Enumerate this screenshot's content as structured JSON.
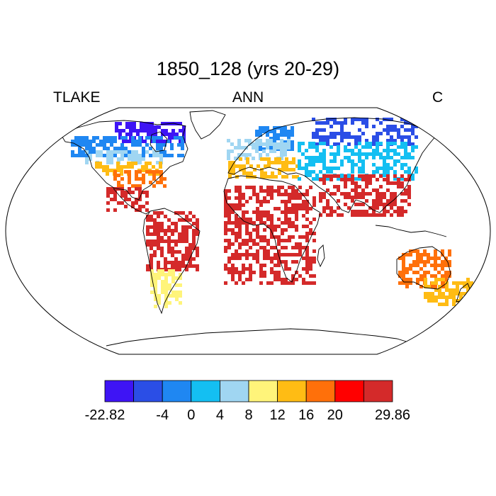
{
  "header": {
    "title": "1850_128 (yrs 20-29)",
    "left_label": "TLAKE",
    "center_label": "ANN",
    "right_label": "C"
  },
  "colorbar": {
    "colors": [
      "#3e14f5",
      "#2b4ee6",
      "#1f87f2",
      "#14bff2",
      "#a0d6f2",
      "#fff47a",
      "#ffbc14",
      "#ff700a",
      "#ff0000",
      "#d42a2a"
    ],
    "tick_labels": [
      "-22.82",
      "",
      "-4",
      "0",
      "4",
      "8",
      "12",
      "16",
      "20",
      "",
      "29.86"
    ]
  },
  "map": {
    "projection": "robinson",
    "variable": "lake temperature",
    "land_outline_color": "#000000",
    "regions": [
      {
        "name": "canadian-arctic",
        "color_index": 0
      },
      {
        "name": "canada",
        "color_index": 2
      },
      {
        "name": "northern-usa",
        "color_index": 4
      },
      {
        "name": "central-usa",
        "color_index": 6
      },
      {
        "name": "southern-usa",
        "color_index": 7
      },
      {
        "name": "mexico",
        "color_index": 9
      },
      {
        "name": "south-america",
        "color_index": 9
      },
      {
        "name": "patagonia",
        "color_index": 5
      },
      {
        "name": "scandinavia",
        "color_index": 2
      },
      {
        "name": "europe",
        "color_index": 4
      },
      {
        "name": "southern-europe",
        "color_index": 6
      },
      {
        "name": "siberia",
        "color_index": 1
      },
      {
        "name": "central-asia",
        "color_index": 3
      },
      {
        "name": "southern-asia",
        "color_index": 9
      },
      {
        "name": "africa",
        "color_index": 9
      },
      {
        "name": "australia",
        "color_index": 7
      },
      {
        "name": "new-zealand",
        "color_index": 6
      }
    ]
  }
}
